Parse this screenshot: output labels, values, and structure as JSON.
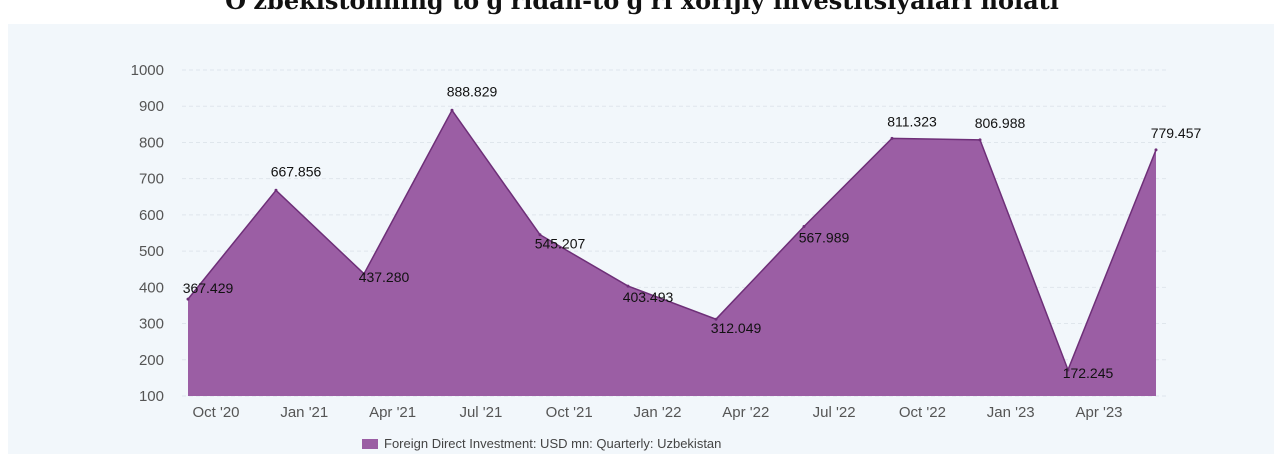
{
  "chart_data": {
    "type": "area",
    "title": "O'zbekistonning to'g'ridan-to'g'ri xorijiy investitsiyalari holati",
    "categories": [
      "Oct '20",
      "Jan '21",
      "Apr '21",
      "Jul '21",
      "Oct '21",
      "Jan '22",
      "Apr '22",
      "Jul '22",
      "Oct '22",
      "Jan '23",
      "Apr '23"
    ],
    "x": [
      "Sep '20",
      "Dec '20",
      "Mar '21",
      "Jun '21",
      "Sep '21",
      "Dec '21",
      "Mar '22",
      "Jun '22",
      "Sep '22",
      "Dec '22",
      "Mar '23",
      "Jun '23"
    ],
    "series": [
      {
        "name": "Foreign Direct Investment: USD mn: Quarterly: Uzbekistan",
        "values": [
          367.429,
          667.856,
          437.28,
          888.829,
          545.207,
          403.493,
          312.049,
          567.989,
          811.323,
          806.988,
          172.245,
          779.457
        ],
        "labels": [
          "367.429",
          "667.856",
          "437.280",
          "888.829",
          "545.207",
          "403.493",
          "312.049",
          "567.989",
          "811.323",
          "806.988",
          "172.245",
          "779.457"
        ]
      }
    ],
    "yticks": [
      "100",
      "200",
      "300",
      "400",
      "500",
      "600",
      "700",
      "800",
      "900",
      "1000"
    ],
    "ylim": [
      100,
      1000
    ],
    "grid": true,
    "legend_position": "bottom",
    "color": "#9b5ea4",
    "line_color": "#6e2f78"
  }
}
